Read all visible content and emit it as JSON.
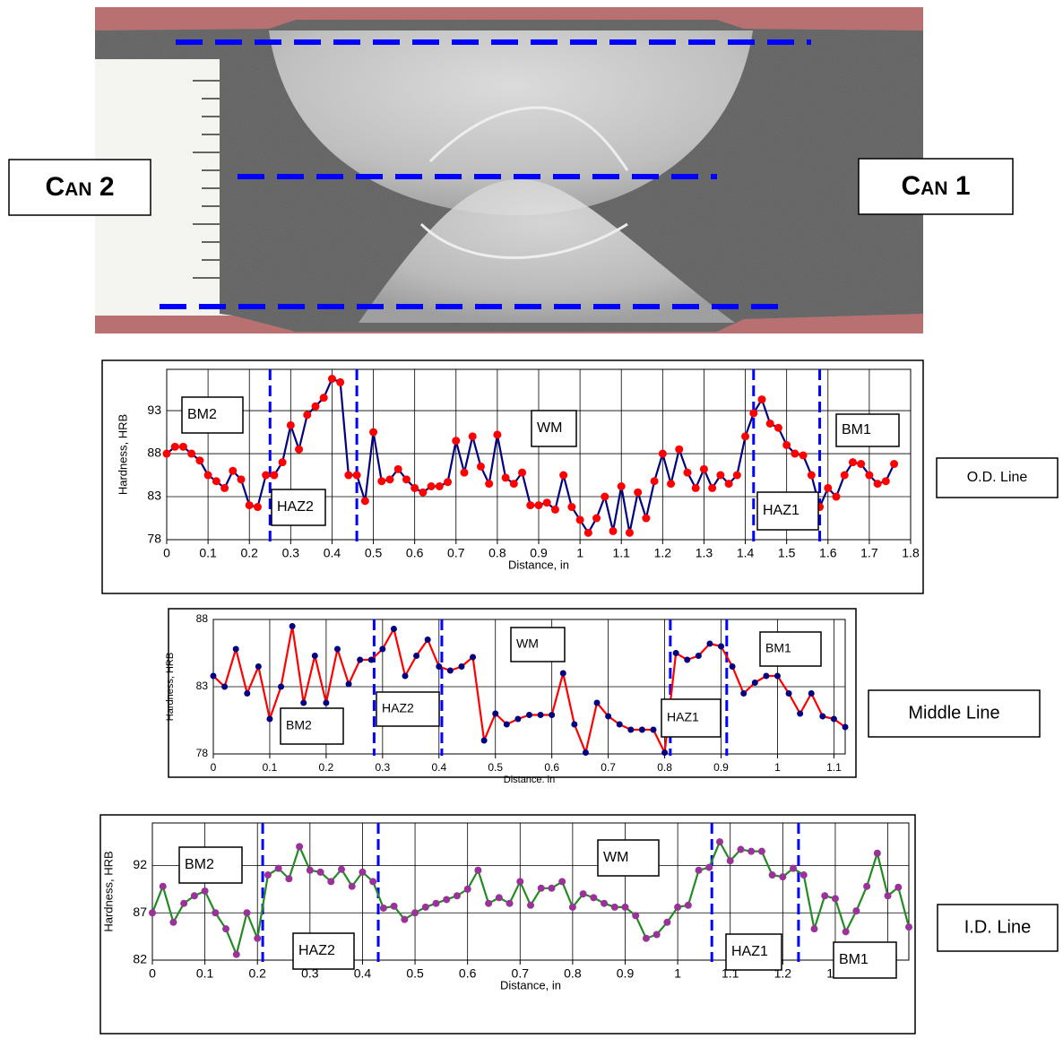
{
  "photo": {
    "labels": [
      "Can 2",
      "Can 1"
    ]
  },
  "chart_data": [
    {
      "type": "line",
      "x_label": "Distance, in",
      "y_label": "Hardness, HRB",
      "side_label": "O.D. Line",
      "zones": [
        "BM2",
        "HAZ2",
        "WM",
        "HAZ1",
        "BM1"
      ],
      "x": [
        0,
        0.02,
        0.04,
        0.06,
        0.08,
        0.1,
        0.12,
        0.14,
        0.16,
        0.18,
        0.2,
        0.22,
        0.24,
        0.26,
        0.28,
        0.3,
        0.32,
        0.34,
        0.36,
        0.38,
        0.4,
        0.42,
        0.44,
        0.46,
        0.48,
        0.5,
        0.52,
        0.54,
        0.56,
        0.58,
        0.6,
        0.62,
        0.64,
        0.66,
        0.68,
        0.7,
        0.72,
        0.74,
        0.76,
        0.78,
        0.8,
        0.82,
        0.84,
        0.86,
        0.88,
        0.9,
        0.92,
        0.94,
        0.96,
        0.98,
        1.0,
        1.02,
        1.04,
        1.06,
        1.08,
        1.1,
        1.12,
        1.14,
        1.16,
        1.18,
        1.2,
        1.22,
        1.24,
        1.26,
        1.28,
        1.3,
        1.32,
        1.34,
        1.36,
        1.38,
        1.4,
        1.42,
        1.44,
        1.46,
        1.48,
        1.5,
        1.52,
        1.54,
        1.56,
        1.58,
        1.6,
        1.62,
        1.64,
        1.66,
        1.68,
        1.7,
        1.72,
        1.74,
        1.76
      ],
      "series": [
        {
          "color": "#000080",
          "marker_color": "#ff0000",
          "values": [
            88,
            88.8,
            88.8,
            88,
            87.2,
            85.5,
            84.8,
            84,
            86,
            85,
            82,
            81.8,
            85.5,
            85.5,
            87,
            91.3,
            88.5,
            92.5,
            93.5,
            94.5,
            96.7,
            96.3,
            85.5,
            85.5,
            82.5,
            90.5,
            84.8,
            85,
            86.2,
            85,
            84,
            83.5,
            84.2,
            84.2,
            84.7,
            89.5,
            85.8,
            90,
            86.5,
            84.5,
            90.2,
            85.2,
            84.5,
            85.8,
            82,
            82,
            82.3,
            81.5,
            85.5,
            81.8,
            80.3,
            78.8,
            80.5,
            83,
            79,
            84.2,
            78.8,
            83.5,
            80.5,
            84.8,
            88,
            84.5,
            88.5,
            85.8,
            84,
            86.2,
            84,
            85.5,
            84.5,
            85.5,
            90,
            92.7,
            94.3,
            91.5,
            91,
            89,
            88,
            87.8,
            85.5,
            81.8,
            84,
            83,
            85.5,
            87,
            86.8,
            85.5,
            84.5,
            84.8,
            86.8
          ]
        }
      ],
      "boundaries": [
        0.25,
        0.46,
        1.42,
        1.58
      ],
      "boundary_color": "#0000ff",
      "xlim": [
        0,
        1.8
      ],
      "ylim": [
        78,
        97.8
      ],
      "xticks": [
        0,
        0.1,
        0.2,
        0.3,
        0.4,
        0.5,
        0.6,
        0.7,
        0.8,
        0.9,
        1,
        1.1,
        1.2,
        1.3,
        1.4,
        1.5,
        1.6,
        1.7,
        1.8
      ],
      "yticks": [
        78,
        83,
        88,
        93
      ],
      "grid": true
    },
    {
      "type": "line",
      "x_label": "Distance. in",
      "y_label": "Hardness, HRB",
      "side_label": "Middle Line",
      "zones": [
        "BM2",
        "HAZ2",
        "WM",
        "HAZ1",
        "BM1"
      ],
      "x": [
        0,
        0.02,
        0.04,
        0.06,
        0.08,
        0.1,
        0.12,
        0.14,
        0.16,
        0.18,
        0.2,
        0.22,
        0.24,
        0.26,
        0.28,
        0.3,
        0.32,
        0.34,
        0.36,
        0.38,
        0.4,
        0.42,
        0.44,
        0.46,
        0.48,
        0.5,
        0.52,
        0.54,
        0.56,
        0.58,
        0.6,
        0.62,
        0.64,
        0.66,
        0.68,
        0.7,
        0.72,
        0.74,
        0.76,
        0.78,
        0.8,
        0.82,
        0.84,
        0.86,
        0.88,
        0.9,
        0.92,
        0.94,
        0.96,
        0.98,
        1.0,
        1.02,
        1.04,
        1.06,
        1.08,
        1.1,
        1.12
      ],
      "series": [
        {
          "color": "#ff0000",
          "marker_color": "#000080",
          "values": [
            83.8,
            83,
            85.8,
            82.5,
            84.5,
            80.6,
            83,
            87.5,
            81.8,
            85.3,
            81.8,
            85.8,
            83.2,
            85,
            85,
            85.8,
            87.3,
            83.8,
            85.3,
            86.5,
            84.5,
            84.2,
            84.5,
            85.2,
            79,
            81,
            80.2,
            80.6,
            80.9,
            80.9,
            80.9,
            84,
            80.2,
            78.1,
            81.8,
            80.8,
            80.2,
            79.8,
            79.8,
            79.8,
            78.1,
            85.5,
            85,
            85.3,
            86.2,
            86,
            84.5,
            82.5,
            83.3,
            83.8,
            83.8,
            82.5,
            81,
            82.5,
            80.8,
            80.6,
            80
          ]
        }
      ],
      "boundaries": [
        0.285,
        0.405,
        0.81,
        0.91
      ],
      "boundary_color": "#0000ff",
      "xlim": [
        0,
        1.12
      ],
      "ylim": [
        78,
        88
      ],
      "xticks": [
        0,
        0.1,
        0.2,
        0.3,
        0.4,
        0.5,
        0.6,
        0.7,
        0.8,
        0.9,
        1,
        1.1
      ],
      "yticks": [
        78,
        83,
        88
      ],
      "grid": true
    },
    {
      "type": "line",
      "x_label": "Distance, in",
      "y_label": "Hardness, HRB",
      "side_label": "I.D. Line",
      "zones": [
        "BM2",
        "HAZ2",
        "WM",
        "HAZ1",
        "BM1"
      ],
      "x": [
        0,
        0.02,
        0.04,
        0.06,
        0.08,
        0.1,
        0.12,
        0.14,
        0.16,
        0.18,
        0.2,
        0.22,
        0.24,
        0.26,
        0.28,
        0.3,
        0.32,
        0.34,
        0.36,
        0.38,
        0.4,
        0.42,
        0.44,
        0.46,
        0.48,
        0.5,
        0.52,
        0.54,
        0.56,
        0.58,
        0.6,
        0.62,
        0.64,
        0.66,
        0.68,
        0.7,
        0.72,
        0.74,
        0.76,
        0.78,
        0.8,
        0.82,
        0.84,
        0.86,
        0.88,
        0.9,
        0.92,
        0.94,
        0.96,
        0.98,
        1.0,
        1.02,
        1.04,
        1.06,
        1.08,
        1.1,
        1.12,
        1.14,
        1.16,
        1.18,
        1.2,
        1.22,
        1.24,
        1.26,
        1.28,
        1.3,
        1.32,
        1.34,
        1.36,
        1.38,
        1.4,
        1.42,
        1.44
      ],
      "series": [
        {
          "color": "#228b22",
          "marker_color": "#993399",
          "values": [
            87,
            89.8,
            86,
            88,
            88.8,
            89.3,
            87,
            85.3,
            82.6,
            87,
            84.3,
            91,
            91.7,
            90.6,
            94,
            91.5,
            91.3,
            90.3,
            91.6,
            89.8,
            91.3,
            90.3,
            87.5,
            87.7,
            86.3,
            87,
            87.6,
            88,
            88.4,
            88.8,
            89.5,
            91.5,
            88,
            88.6,
            88,
            90.3,
            87.8,
            89.6,
            89.6,
            90.3,
            87.6,
            89,
            88.6,
            88,
            87.6,
            87.6,
            86.7,
            84.3,
            84.7,
            86,
            87.6,
            87.8,
            91.5,
            91.8,
            94.5,
            92.5,
            93.7,
            93.5,
            93.5,
            91,
            90.8,
            91.7,
            91,
            85.3,
            88.8,
            88.5,
            85,
            87.2,
            89.8,
            93.3,
            88.8,
            89.7,
            85.5
          ]
        }
      ],
      "boundaries": [
        0.21,
        0.43,
        1.065,
        1.23
      ],
      "boundary_color": "#0000ff",
      "xlim": [
        0,
        1.44
      ],
      "ylim": [
        82,
        96.5
      ],
      "xticks": [
        0,
        0.1,
        0.2,
        0.3,
        0.4,
        0.5,
        0.6,
        0.7,
        0.8,
        0.9,
        1,
        1.1,
        1.2,
        1.3,
        1.4
      ],
      "yticks": [
        82,
        87,
        92
      ],
      "grid": true
    }
  ]
}
